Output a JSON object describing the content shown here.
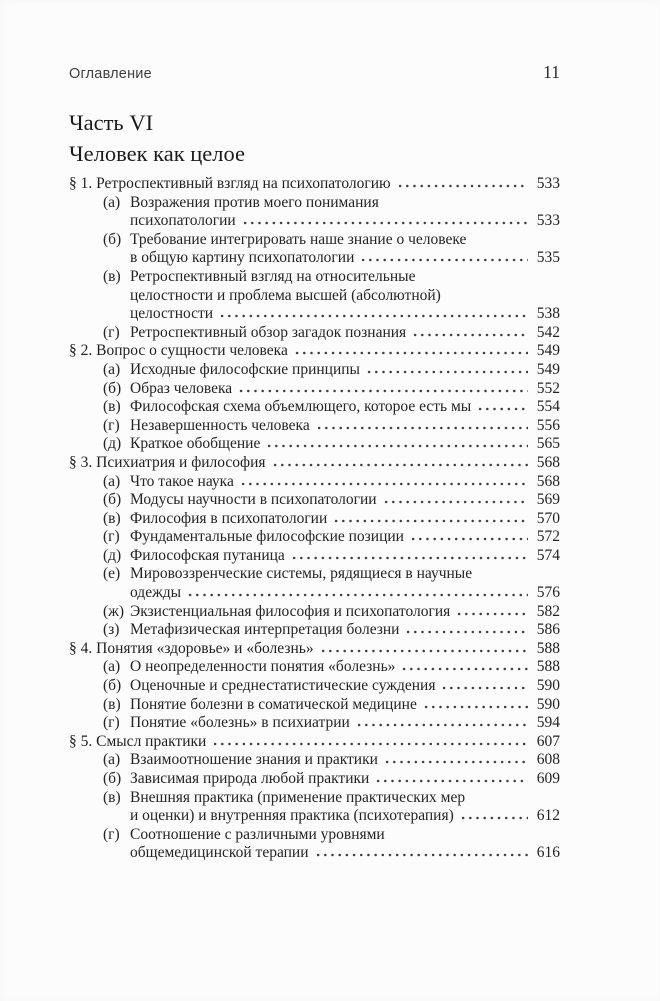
{
  "colors": {
    "background": "#fcfcfc",
    "text": "#242424",
    "running_header": "#3e3e3e"
  },
  "header": {
    "running_title": "Оглавление",
    "page_number": "11"
  },
  "heading": {
    "part": "Часть VI",
    "title": "Человек как целое"
  },
  "toc": {
    "sections": [
      {
        "label": "§ 1.",
        "title": "Ретроспективный взгляд на психопатологию",
        "page": "533",
        "subs": [
          {
            "label": "(а)",
            "lines": [
              "Возражения против моего понимания",
              "психопатологии"
            ],
            "page": "533"
          },
          {
            "label": "(б)",
            "lines": [
              "Требование интегрировать наше знание о человеке",
              "в общую картину психопатологии"
            ],
            "page": "535"
          },
          {
            "label": "(в)",
            "lines": [
              "Ретроспективный взгляд на относительные",
              "целостности и проблема высшей (абсолютной)",
              "целостности"
            ],
            "page": "538"
          },
          {
            "label": "(г)",
            "lines": [
              "Ретроспективный обзор загадок познания"
            ],
            "page": "542"
          }
        ]
      },
      {
        "label": "§ 2.",
        "title": "Вопрос о сущности человека",
        "page": "549",
        "subs": [
          {
            "label": "(а)",
            "lines": [
              "Исходные философские принципы"
            ],
            "page": "549"
          },
          {
            "label": "(б)",
            "lines": [
              "Образ человека"
            ],
            "page": "552"
          },
          {
            "label": "(в)",
            "lines": [
              "Философская схема объемлющего, которое есть мы"
            ],
            "page": "554"
          },
          {
            "label": "(г)",
            "lines": [
              "Незавершенность человека"
            ],
            "page": "556"
          },
          {
            "label": "(д)",
            "lines": [
              "Краткое обобщение"
            ],
            "page": "565"
          }
        ]
      },
      {
        "label": "§ 3.",
        "title": "Психиатрия и философия",
        "page": "568",
        "subs": [
          {
            "label": "(а)",
            "lines": [
              "Что такое наука"
            ],
            "page": "568"
          },
          {
            "label": "(б)",
            "lines": [
              "Модусы научности в психопатологии"
            ],
            "page": "569"
          },
          {
            "label": "(в)",
            "lines": [
              "Философия в психопатологии"
            ],
            "page": "570"
          },
          {
            "label": "(г)",
            "lines": [
              "Фундаментальные философские позиции"
            ],
            "page": "572"
          },
          {
            "label": "(д)",
            "lines": [
              "Философская путаница"
            ],
            "page": "574"
          },
          {
            "label": "(е)",
            "lines": [
              "Мировоззренческие системы, рядящиеся в научные",
              "одежды"
            ],
            "page": "576"
          },
          {
            "label": "(ж)",
            "lines": [
              "Экзистенциальная философия и психопатология"
            ],
            "page": "582"
          },
          {
            "label": "(з)",
            "lines": [
              "Метафизическая интерпретация болезни"
            ],
            "page": "586"
          }
        ]
      },
      {
        "label": "§ 4.",
        "title": "Понятия «здоровье» и «болезнь»",
        "page": "588",
        "subs": [
          {
            "label": "(а)",
            "lines": [
              "О неопределенности понятия «болезнь»"
            ],
            "page": "588"
          },
          {
            "label": "(б)",
            "lines": [
              "Оценочные и среднестатистические суждения"
            ],
            "page": "590"
          },
          {
            "label": "(в)",
            "lines": [
              "Понятие болезни в соматической медицине"
            ],
            "page": "590"
          },
          {
            "label": "(г)",
            "lines": [
              "Понятие «болезнь» в психиатрии"
            ],
            "page": "594"
          }
        ]
      },
      {
        "label": "§ 5.",
        "title": "Смысл практики",
        "page": "607",
        "subs": [
          {
            "label": "(а)",
            "lines": [
              "Взаимоотношение знания и практики"
            ],
            "page": "608"
          },
          {
            "label": "(б)",
            "lines": [
              "Зависимая природа любой практики"
            ],
            "page": "609"
          },
          {
            "label": "(в)",
            "lines": [
              "Внешняя практика (применение практических мер",
              "и оценки) и внутренняя практика (психотерапия)"
            ],
            "page": "612"
          },
          {
            "label": "(г)",
            "lines": [
              "Соотношение с различными уровнями",
              "общемедицинской терапии"
            ],
            "page": "616"
          }
        ]
      }
    ]
  }
}
